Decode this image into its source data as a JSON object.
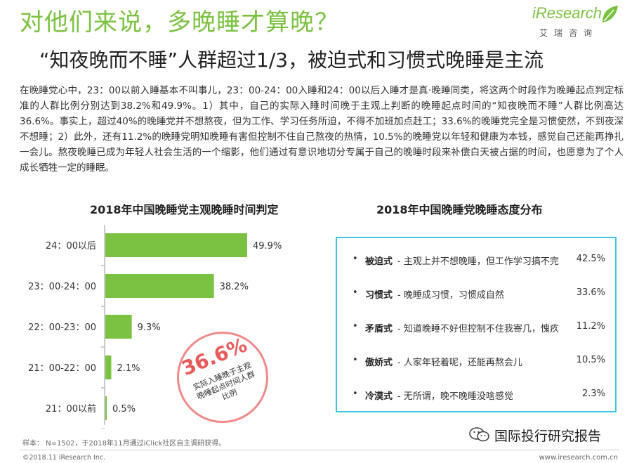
{
  "header": {
    "title": "对他们来说，多晚睡才算晚？",
    "subtitle": "“知夜晚而不睡”人群超过1/3，被迫式和习惯式晚睡是主流",
    "logo_text": "iResearch",
    "logo_cn": "艾瑞咨询"
  },
  "body_text": "在晚睡党心中，23：00以前入睡基本不叫事儿，23：00-24：00入睡和24：00以后入睡才是真·晚睡同类，将这两个时段作为晚睡起点判定标准的人群比例分别达到38.2%和49.9%。1）其中，自己的实际入睡时间晚于主观上判断的晚睡起点时间的“知夜晚而不睡”人群比例高达36.6%。事实上，超过40%的晚睡党并不想熬夜，但为工作、学习任务所迫，不得不加班加点赶工；33.6%的晚睡党完全是习惯使然，不到夜深不想睡；2）此外，还有11.2%的晚睡党明知晚睡有害但控制不住自己熬夜的热情，10.5%的晚睡党以年轻和健康为本钱，感觉自己还能再挣扎一会儿。熬夜晚睡已成为年轻人社会生活的一个缩影，他们通过有意识地切分专属于自己的晚睡时段来补偿白天被占据的时间，也愿意为了个人成长牺牲一定的睡眠。",
  "chart_data": [
    {
      "type": "bar",
      "orientation": "horizontal",
      "title": "2018年中国晚睡党主观晚睡时间判定",
      "categories": [
        "24：00以后",
        "23：00-24：00",
        "22：00-23：00",
        "21：00-22：00",
        "21：00以前"
      ],
      "values": [
        49.9,
        38.2,
        9.3,
        2.1,
        0.5
      ],
      "value_labels": [
        "49.9%",
        "38.2%",
        "9.3%",
        "2.1%",
        "0.5%"
      ],
      "bar_color": "#7cc242",
      "annotation": {
        "value": "36.6%",
        "text": "实际入睡晚于主观晚睡起点时间人群比例"
      }
    },
    {
      "type": "table",
      "title": "2018年中国晚睡党晚睡态度分布",
      "rows": [
        {
          "name": "被迫式",
          "desc": " - 主观上并不想晚睡，但工作学习搞不完",
          "value": "42.5%"
        },
        {
          "name": "习惯式",
          "desc": " - 晚睡成习惯，习惯成自然",
          "value": "33.6%"
        },
        {
          "name": "矛盾式",
          "desc": " - 知道晚睡不好但控制不住我寄几，愧疚",
          "value": "11.2%"
        },
        {
          "name": "傲娇式",
          "desc": " - 人家年轻着呢，还能再熬会儿",
          "value": "10.5%"
        },
        {
          "name": "冷漠式",
          "desc": " - 无所谓，晚不晚睡没啥感觉",
          "value": "2.3%"
        }
      ],
      "border_color": "#3cc6e6"
    }
  ],
  "footer": {
    "sample_note": "样本： N=1502，于2018年11月通过iClick社区自主调研获得。",
    "copyright": "©2018.11 iResearch Inc.",
    "website": "www.iresearch.com.cn",
    "wechat_text": "国际投行研究报告"
  }
}
